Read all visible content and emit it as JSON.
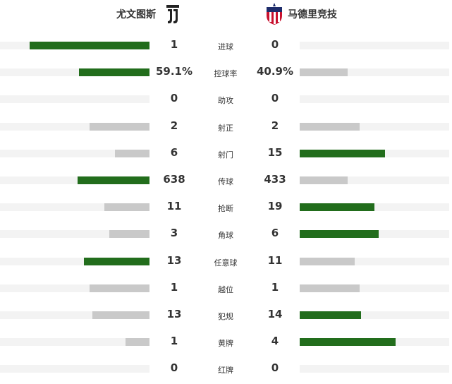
{
  "header": {
    "home_team": "尤文图斯",
    "away_team": "马德里竞技",
    "home_crest_icon": "juventus-crest-icon",
    "away_crest_icon": "atletico-madrid-crest-icon"
  },
  "colors": {
    "winner_bar": "#226d1c",
    "loser_bar": "#c9c9c9",
    "track": "#f3f3f3"
  },
  "stats": [
    {
      "label": "进球",
      "home": "1",
      "away": "0",
      "home_share": 0.8,
      "away_share": 0.0,
      "leader": "home"
    },
    {
      "label": "控球率",
      "home": "59.1%",
      "away": "40.9%",
      "home_share": 0.47,
      "away_share": 0.32,
      "leader": "home"
    },
    {
      "label": "助攻",
      "home": "0",
      "away": "0",
      "home_share": 0.0,
      "away_share": 0.0,
      "leader": "none"
    },
    {
      "label": "射正",
      "home": "2",
      "away": "2",
      "home_share": 0.4,
      "away_share": 0.4,
      "leader": "none"
    },
    {
      "label": "射门",
      "home": "6",
      "away": "15",
      "home_share": 0.23,
      "away_share": 0.57,
      "leader": "away"
    },
    {
      "label": "传球",
      "home": "638",
      "away": "433",
      "home_share": 0.48,
      "away_share": 0.32,
      "leader": "home"
    },
    {
      "label": "抢断",
      "home": "11",
      "away": "19",
      "home_share": 0.3,
      "away_share": 0.5,
      "leader": "away"
    },
    {
      "label": "角球",
      "home": "3",
      "away": "6",
      "home_share": 0.27,
      "away_share": 0.53,
      "leader": "away"
    },
    {
      "label": "任意球",
      "home": "13",
      "away": "11",
      "home_share": 0.44,
      "away_share": 0.37,
      "leader": "home"
    },
    {
      "label": "越位",
      "home": "1",
      "away": "1",
      "home_share": 0.4,
      "away_share": 0.4,
      "leader": "none"
    },
    {
      "label": "犯规",
      "home": "13",
      "away": "14",
      "home_share": 0.38,
      "away_share": 0.41,
      "leader": "away"
    },
    {
      "label": "黄牌",
      "home": "1",
      "away": "4",
      "home_share": 0.16,
      "away_share": 0.64,
      "leader": "away"
    },
    {
      "label": "红牌",
      "home": "0",
      "away": "0",
      "home_share": 0.0,
      "away_share": 0.0,
      "leader": "none"
    }
  ]
}
